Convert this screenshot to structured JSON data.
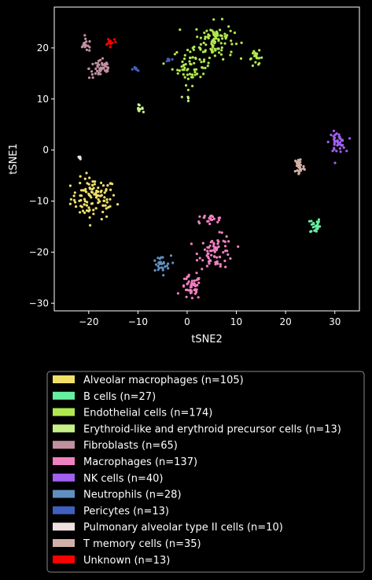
{
  "chart_data": {
    "type": "scatter",
    "title": "",
    "xlabel": "tSNE2",
    "ylabel": "tSNE1",
    "xlim": [
      -27,
      35
    ],
    "ylim": [
      -31.5,
      28
    ],
    "xticks": [
      -20,
      -10,
      0,
      10,
      20,
      30
    ],
    "yticks": [
      -30,
      -20,
      -10,
      0,
      10,
      20
    ],
    "grid": false,
    "legend_position": "below",
    "series": [
      {
        "name": "Alveolar macrophages (n=105)",
        "color": "#f0e068",
        "clusters": [
          {
            "cx": -19,
            "cy": -9.5,
            "sx": 2.3,
            "sy": 2.0,
            "n": 105
          }
        ]
      },
      {
        "name": "B cells (n=27)",
        "color": "#66f0a0",
        "clusters": [
          {
            "cx": 26,
            "cy": -14.8,
            "sx": 0.5,
            "sy": 0.8,
            "n": 27
          }
        ]
      },
      {
        "name": "Endothelial cells (n=174)",
        "color": "#b0e850",
        "clusters": [
          {
            "cx": 5.5,
            "cy": 21.5,
            "sx": 2.0,
            "sy": 1.8,
            "n": 95
          },
          {
            "cx": 1,
            "cy": 16.5,
            "sx": 2.0,
            "sy": 1.8,
            "n": 60
          },
          {
            "cx": 14,
            "cy": 18,
            "sx": 0.7,
            "sy": 0.7,
            "n": 19
          }
        ]
      },
      {
        "name": "Erythroid-like and erythroid precursor cells (n=13)",
        "color": "#c8f088",
        "clusters": [
          {
            "cx": -10,
            "cy": 8.2,
            "sx": 0.5,
            "sy": 0.3,
            "n": 10
          },
          {
            "cx": 0.4,
            "cy": 10,
            "sx": 0.2,
            "sy": 0.3,
            "n": 3
          }
        ]
      },
      {
        "name": "Fibroblasts (n=65)",
        "color": "#c090a0",
        "clusters": [
          {
            "cx": -17.5,
            "cy": 16,
            "sx": 1.2,
            "sy": 1.0,
            "n": 48
          },
          {
            "cx": -20.5,
            "cy": 20.5,
            "sx": 0.7,
            "sy": 0.6,
            "n": 17
          }
        ]
      },
      {
        "name": "Macrophages (n=137)",
        "color": "#f080c0",
        "clusters": [
          {
            "cx": 0.8,
            "cy": -27,
            "sx": 1.0,
            "sy": 1.2,
            "n": 45
          },
          {
            "cx": 6,
            "cy": -20,
            "sx": 1.8,
            "sy": 1.6,
            "n": 70
          },
          {
            "cx": 4.5,
            "cy": -13.5,
            "sx": 1.5,
            "sy": 0.4,
            "n": 22
          }
        ]
      },
      {
        "name": "NK cells (n=40)",
        "color": "#a060f0",
        "clusters": [
          {
            "cx": 30.5,
            "cy": 1.5,
            "sx": 0.8,
            "sy": 1.0,
            "n": 40
          }
        ]
      },
      {
        "name": "Neutrophils (n=28)",
        "color": "#6090c0",
        "clusters": [
          {
            "cx": -5.5,
            "cy": -22.5,
            "sx": 1.1,
            "sy": 0.9,
            "n": 28
          }
        ]
      },
      {
        "name": "Pericytes (n=13)",
        "color": "#4060c0",
        "clusters": [
          {
            "cx": -10.5,
            "cy": 15.8,
            "sx": 0.3,
            "sy": 0.3,
            "n": 8
          },
          {
            "cx": -3.5,
            "cy": 17.5,
            "sx": 0.3,
            "sy": 0.3,
            "n": 5
          }
        ]
      },
      {
        "name": "Pulmonary alveolar type II cells (n=10)",
        "color": "#f0e0e0",
        "clusters": [
          {
            "cx": -21.8,
            "cy": -1.5,
            "sx": 0.15,
            "sy": 0.15,
            "n": 10
          }
        ]
      },
      {
        "name": "T memory cells (n=35)",
        "color": "#d0b0a8",
        "clusters": [
          {
            "cx": 22.8,
            "cy": -3.2,
            "sx": 0.5,
            "sy": 1.0,
            "n": 35
          }
        ]
      },
      {
        "name": "Unknown (n=13)",
        "color": "#ff0000",
        "clusters": [
          {
            "cx": -15.5,
            "cy": 21.3,
            "sx": 0.6,
            "sy": 0.4,
            "n": 13
          }
        ]
      }
    ]
  }
}
